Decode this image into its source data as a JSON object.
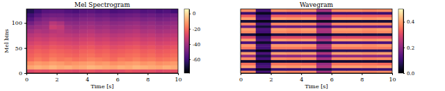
{
  "chart_data": [
    {
      "type": "heatmap",
      "title": "Mel Spectrogram",
      "xlabel": "Time [s]",
      "ylabel": "Mel bins",
      "xlim": [
        0,
        10
      ],
      "xticks": [
        0,
        2,
        4,
        6,
        8,
        10
      ],
      "ylim": [
        0,
        128
      ],
      "yticks": [
        0,
        50,
        100
      ],
      "values": [
        [
          -28,
          -26,
          -27,
          -25,
          -26,
          -27,
          -28,
          -26,
          -25,
          -27,
          -26,
          -28,
          -27,
          -25,
          -26,
          -27,
          -26,
          -28,
          -27,
          -26
        ],
        [
          -10,
          -8,
          -9,
          -7,
          -9,
          -8,
          -10,
          -9,
          -7,
          -8,
          -9,
          -10,
          -8,
          -9,
          -7,
          -8,
          -9,
          -10,
          -8,
          -9
        ],
        [
          -14,
          -12,
          -13,
          -11,
          -12,
          -14,
          -13,
          -12,
          -11,
          -13,
          -12,
          -14,
          -13,
          -12,
          -11,
          -13,
          -12,
          -14,
          -13,
          -12
        ],
        [
          -20,
          -17,
          -19,
          -16,
          -18,
          -17,
          -19,
          -18,
          -16,
          -17,
          -18,
          -20,
          -17,
          -18,
          -16,
          -18,
          -17,
          -19,
          -18,
          -17
        ],
        [
          -22,
          -20,
          -21,
          -19,
          -20,
          -21,
          -22,
          -20,
          -19,
          -21,
          -20,
          -22,
          -21,
          -20,
          -19,
          -21,
          -20,
          -22,
          -21,
          -20
        ],
        [
          -24,
          -22,
          -23,
          -21,
          -22,
          -23,
          -24,
          -22,
          -21,
          -23,
          -22,
          -24,
          -23,
          -22,
          -21,
          -23,
          -22,
          -24,
          -23,
          -22
        ],
        [
          -27,
          -25,
          -26,
          -24,
          -25,
          -26,
          -27,
          -25,
          -24,
          -26,
          -25,
          -27,
          -26,
          -25,
          -24,
          -26,
          -25,
          -27,
          -26,
          -25
        ],
        [
          -30,
          -28,
          -29,
          -27,
          -28,
          -29,
          -30,
          -28,
          -27,
          -29,
          -28,
          -30,
          -29,
          -28,
          -27,
          -29,
          -28,
          -30,
          -29,
          -28
        ],
        [
          -33,
          -31,
          -32,
          -30,
          -31,
          -32,
          -33,
          -31,
          -30,
          -32,
          -31,
          -33,
          -32,
          -31,
          -30,
          -32,
          -31,
          -33,
          -32,
          -31
        ],
        [
          -36,
          -34,
          -35,
          -33,
          -34,
          -35,
          -36,
          -34,
          -33,
          -35,
          -34,
          -36,
          -35,
          -34,
          -33,
          -35,
          -34,
          -36,
          -35,
          -34
        ],
        [
          -40,
          -37,
          -38,
          -36,
          -35,
          -38,
          -39,
          -37,
          -36,
          -38,
          -37,
          -39,
          -38,
          -37,
          -36,
          -38,
          -37,
          -39,
          -38,
          -37
        ],
        [
          -44,
          -41,
          -40,
          -32,
          -34,
          -40,
          -42,
          -40,
          -39,
          -41,
          -40,
          -42,
          -41,
          -40,
          -39,
          -41,
          -40,
          -42,
          -41,
          -40
        ],
        [
          -50,
          -45,
          -43,
          -36,
          -38,
          -44,
          -45,
          -43,
          -42,
          -44,
          -43,
          -45,
          -44,
          -43,
          -42,
          -44,
          -43,
          -45,
          -44,
          -43
        ],
        [
          -56,
          -50,
          -47,
          -45,
          -46,
          -48,
          -49,
          -47,
          -46,
          -48,
          -47,
          -49,
          -48,
          -47,
          -46,
          -48,
          -47,
          -49,
          -48,
          -47
        ],
        [
          -60,
          -55,
          -51,
          -50,
          -50,
          -52,
          -53,
          -51,
          -50,
          -52,
          -51,
          -53,
          -52,
          -51,
          -50,
          -52,
          -51,
          -53,
          -52,
          -51
        ],
        [
          -66,
          -60,
          -56,
          -55,
          -55,
          -57,
          -58,
          -56,
          -55,
          -57,
          -56,
          -58,
          -57,
          -56,
          -55,
          -57,
          -56,
          -58,
          -57,
          -60
        ]
      ],
      "colorbar": {
        "range": [
          -78,
          6
        ],
        "ticks": [
          0,
          -20,
          -40,
          -60
        ]
      }
    },
    {
      "type": "heatmap",
      "title": "Wavegram",
      "xlabel": "Time [s]",
      "xlim": [
        0,
        10
      ],
      "xticks": [
        0,
        2,
        4,
        6,
        8,
        10
      ],
      "tick_labels": "x",
      "values": [
        [
          0.38,
          0.11,
          0.38,
          0.37,
          0.38,
          0.23,
          0.38,
          0.38,
          0.37,
          0.38
        ],
        [
          0.1,
          0.03,
          0.1,
          0.1,
          0.11,
          0.06,
          0.1,
          0.1,
          0.1,
          0.1
        ],
        [
          0.4,
          0.12,
          0.4,
          0.39,
          0.4,
          0.24,
          0.4,
          0.4,
          0.39,
          0.4
        ],
        [
          0.35,
          0.1,
          0.35,
          0.35,
          0.34,
          0.21,
          0.35,
          0.35,
          0.35,
          0.34
        ],
        [
          0.05,
          0.02,
          0.05,
          0.05,
          0.05,
          0.03,
          0.05,
          0.05,
          0.05,
          0.05
        ],
        [
          0.38,
          0.11,
          0.38,
          0.37,
          0.38,
          0.23,
          0.38,
          0.38,
          0.37,
          0.38
        ],
        [
          0.2,
          0.06,
          0.2,
          0.2,
          0.21,
          0.12,
          0.2,
          0.2,
          0.2,
          0.2
        ],
        [
          0.4,
          0.12,
          0.4,
          0.39,
          0.4,
          0.24,
          0.4,
          0.4,
          0.39,
          0.4
        ],
        [
          0.08,
          0.02,
          0.08,
          0.08,
          0.08,
          0.05,
          0.08,
          0.08,
          0.08,
          0.08
        ],
        [
          0.36,
          0.11,
          0.36,
          0.36,
          0.35,
          0.22,
          0.36,
          0.36,
          0.36,
          0.36
        ],
        [
          0.39,
          0.12,
          0.39,
          0.39,
          0.39,
          0.23,
          0.39,
          0.39,
          0.38,
          0.39
        ],
        [
          0.12,
          0.04,
          0.12,
          0.12,
          0.12,
          0.07,
          0.12,
          0.12,
          0.12,
          0.12
        ],
        [
          0.4,
          0.12,
          0.4,
          0.39,
          0.4,
          0.24,
          0.4,
          0.4,
          0.39,
          0.4
        ],
        [
          0.3,
          0.09,
          0.3,
          0.3,
          0.3,
          0.18,
          0.3,
          0.3,
          0.3,
          0.3
        ],
        [
          0.06,
          0.02,
          0.06,
          0.06,
          0.06,
          0.04,
          0.06,
          0.06,
          0.06,
          0.06
        ],
        [
          0.38,
          0.11,
          0.38,
          0.37,
          0.38,
          0.23,
          0.38,
          0.38,
          0.37,
          0.38
        ],
        [
          0.4,
          0.12,
          0.4,
          0.39,
          0.4,
          0.24,
          0.4,
          0.4,
          0.39,
          0.4
        ],
        [
          0.15,
          0.05,
          0.15,
          0.15,
          0.15,
          0.09,
          0.15,
          0.15,
          0.15,
          0.15
        ],
        [
          0.37,
          0.11,
          0.37,
          0.37,
          0.37,
          0.22,
          0.37,
          0.37,
          0.37,
          0.37
        ],
        [
          0.05,
          0.02,
          0.05,
          0.05,
          0.05,
          0.03,
          0.05,
          0.05,
          0.05,
          0.05
        ],
        [
          0.4,
          0.12,
          0.4,
          0.39,
          0.4,
          0.24,
          0.4,
          0.4,
          0.39,
          0.4
        ],
        [
          0.33,
          0.1,
          0.33,
          0.33,
          0.33,
          0.2,
          0.33,
          0.33,
          0.33,
          0.33
        ],
        [
          0.1,
          0.03,
          0.1,
          0.1,
          0.11,
          0.06,
          0.1,
          0.1,
          0.1,
          0.1
        ],
        [
          0.38,
          0.11,
          0.38,
          0.37,
          0.38,
          0.23,
          0.38,
          0.38,
          0.37,
          0.38
        ]
      ],
      "colorbar": {
        "range": [
          0,
          0.5
        ],
        "ticks": [
          {
            "value": 0,
            "label": "0.0"
          },
          {
            "value": 0.2,
            "label": "0.2"
          },
          {
            "value": 0.4,
            "label": "0.4"
          }
        ]
      }
    }
  ]
}
